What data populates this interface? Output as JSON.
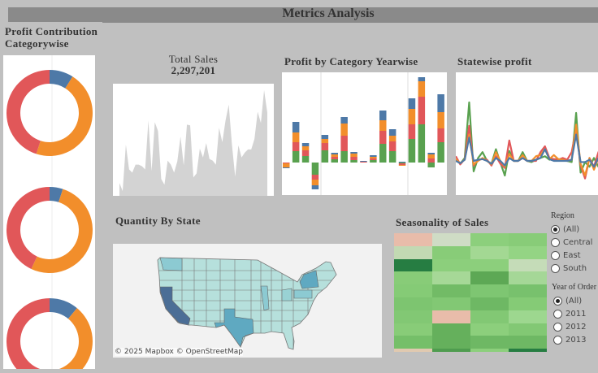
{
  "header": {
    "title": "Metrics Analysis"
  },
  "colors": {
    "furniture": "#4e79a7",
    "office_supplies": "#f28e2b",
    "technology": "#e15759",
    "green": "#59a14f",
    "background": "#c0c0c0"
  },
  "profit_contribution": {
    "title": "Profit Contribution Categorywise",
    "donuts": [
      {
        "slices": [
          {
            "color": "#4e79a7",
            "fraction": 0.09
          },
          {
            "color": "#f28e2b",
            "fraction": 0.46
          },
          {
            "color": "#e15759",
            "fraction": 0.45
          }
        ]
      },
      {
        "slices": [
          {
            "color": "#4e79a7",
            "fraction": 0.05
          },
          {
            "color": "#f28e2b",
            "fraction": 0.52
          },
          {
            "color": "#e15759",
            "fraction": 0.43
          }
        ]
      },
      {
        "slices": [
          {
            "color": "#4e79a7",
            "fraction": 0.11
          },
          {
            "color": "#f28e2b",
            "fraction": 0.44
          },
          {
            "color": "#e15759",
            "fraction": 0.45
          }
        ]
      }
    ]
  },
  "total_sales": {
    "title": "Total Sales",
    "value": "2,297,201"
  },
  "chart_data": [
    {
      "type": "area",
      "title": "Total Sales",
      "values": [
        16,
        6,
        64,
        33,
        29,
        39,
        39,
        37,
        33,
        94,
        31,
        92,
        81,
        21,
        14,
        44,
        39,
        29,
        43,
        74,
        38,
        89,
        88,
        23,
        28,
        59,
        48,
        66,
        46,
        44,
        39,
        85,
        67,
        94,
        114,
        64,
        24,
        63,
        48,
        54,
        58,
        58,
        71,
        105,
        91,
        132,
        104
      ],
      "color": "#d3d3d3"
    },
    {
      "type": "bar",
      "stacked": true,
      "title": "Profit by Category Yearwise",
      "panels": [
        4,
        9,
        4
      ],
      "series": [
        {
          "color": "#59a14f",
          "values": [
            0,
            14,
            8,
            -15,
            15,
            4,
            14,
            3,
            0,
            3,
            23,
            14,
            -1,
            29,
            47,
            -6,
            25
          ]
        },
        {
          "color": "#e15759",
          "values": [
            -1,
            11,
            7,
            -6,
            9,
            3,
            19,
            4,
            1,
            2,
            16,
            12,
            -2,
            18,
            34,
            5,
            17
          ]
        },
        {
          "color": "#f28e2b",
          "values": [
            -5,
            12,
            5,
            -7,
            5,
            3,
            15,
            4,
            0,
            2,
            13,
            7,
            -1,
            19,
            19,
            5,
            20
          ]
        },
        {
          "color": "#4e79a7",
          "values": [
            -1,
            13,
            4,
            -5,
            5,
            2,
            8,
            2,
            1,
            2,
            12,
            8,
            1,
            13,
            5,
            2,
            22
          ]
        }
      ]
    },
    {
      "type": "line",
      "title": "Statewise profit",
      "series": [
        {
          "color": "#59a14f",
          "values": [
            2,
            -5,
            5,
            100,
            -18,
            5,
            15,
            0,
            -5,
            20,
            -3,
            -25,
            17,
            0,
            0,
            15,
            0,
            -2,
            2,
            5,
            8,
            2,
            3,
            3,
            2,
            0,
            -2,
            82,
            -20,
            -2,
            -10,
            5,
            -10,
            2
          ]
        },
        {
          "color": "#e15759",
          "values": [
            8,
            -6,
            3,
            60,
            -8,
            2,
            3,
            2,
            -8,
            8,
            -5,
            -12,
            35,
            0,
            0,
            5,
            0,
            0,
            0,
            15,
            25,
            5,
            3,
            2,
            5,
            2,
            15,
            55,
            -8,
            -30,
            5,
            -10,
            15,
            0
          ]
        },
        {
          "color": "#f28e2b",
          "values": [
            3,
            -4,
            2,
            45,
            -6,
            0,
            5,
            0,
            -6,
            15,
            0,
            -10,
            12,
            0,
            0,
            10,
            0,
            0,
            8,
            10,
            20,
            3,
            10,
            3,
            2,
            0,
            2,
            62,
            -5,
            -25,
            5,
            -15,
            5,
            0
          ]
        },
        {
          "color": "#4e79a7",
          "values": [
            0,
            -4,
            2,
            40,
            0,
            2,
            3,
            0,
            -5,
            5,
            0,
            -8,
            5,
            0,
            0,
            5,
            0,
            0,
            2,
            5,
            20,
            3,
            0,
            0,
            0,
            0,
            2,
            45,
            -2,
            -2,
            2,
            -10,
            5,
            0
          ]
        }
      ]
    }
  ],
  "quantity_by_state": {
    "title": "Quantity By State",
    "attribution": "© 2025 Mapbox  © OpenStreetMap",
    "base_color": "#b6e0dc",
    "highlight": {
      "CA": "#4b6e96",
      "TX": "#5fa9c1",
      "NY": "#5fa9c1",
      "WA": "#8ccad2",
      "IL": "#8ccad2",
      "PA": "#8ccad2",
      "OH": "#99d2d4"
    }
  },
  "seasonality": {
    "title": "Seasonality of Sales",
    "cell_colors": [
      [
        "#e8bcaa",
        "#cfdcc5",
        "#8ccf7c",
        "#88cc78"
      ],
      [
        "#c2d9b3",
        "#88cc78",
        "#a3d893",
        "#94d484"
      ],
      [
        "#267d42",
        "#8ccf7c",
        "#8ccf7c",
        "#c5dcb8"
      ],
      [
        "#88cc78",
        "#a6d897",
        "#5da855",
        "#a5d797"
      ],
      [
        "#85cb76",
        "#72bb66",
        "#7ec672",
        "#78c16d"
      ],
      [
        "#7dc570",
        "#82c874",
        "#6eb864",
        "#85cb76"
      ],
      [
        "#82c874",
        "#e8bcaa",
        "#82c874",
        "#9dd78f"
      ],
      [
        "#88cc78",
        "#65b05c",
        "#8ccf7c",
        "#82c874"
      ],
      [
        "#75bf69",
        "#65b05c",
        "#6eb864",
        "#6eb864"
      ],
      [
        "#e0c9b0",
        "#4f9c4f",
        "#8ccf7c",
        "#267d42"
      ]
    ]
  },
  "filters": {
    "region": {
      "label": "Region",
      "options": [
        "(All)",
        "Central",
        "East",
        "South"
      ],
      "selected": "(All)"
    },
    "year": {
      "label": "Year of Order",
      "options": [
        "(All)",
        "2011",
        "2012",
        "2013"
      ],
      "selected": "(All)"
    }
  }
}
